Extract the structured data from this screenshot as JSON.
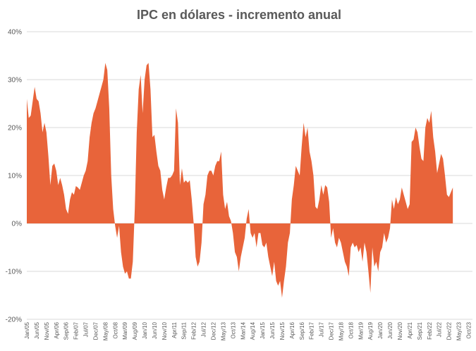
{
  "chart_data": {
    "type": "area",
    "title": "IPC en dólares - incremento anual",
    "xlabel": "",
    "ylabel": "",
    "ylim": [
      -0.2,
      0.4
    ],
    "y_ticks": [
      {
        "value": 0.4,
        "label": "40%"
      },
      {
        "value": 0.3,
        "label": "30%"
      },
      {
        "value": 0.2,
        "label": "20%"
      },
      {
        "value": 0.1,
        "label": "10%"
      },
      {
        "value": 0.0,
        "label": "0%"
      },
      {
        "value": -0.1,
        "label": "-10%"
      },
      {
        "value": -0.2,
        "label": "-20%"
      }
    ],
    "x_range": [
      "Jan/05",
      "Dec/23"
    ],
    "x_ticks": [
      {
        "index": 0,
        "label": "Jan/05"
      },
      {
        "index": 5,
        "label": "Jun/05"
      },
      {
        "index": 10,
        "label": "Nov/05"
      },
      {
        "index": 15,
        "label": "Apr/06"
      },
      {
        "index": 20,
        "label": "Sep/06"
      },
      {
        "index": 25,
        "label": "Feb/07"
      },
      {
        "index": 30,
        "label": "Jul/07"
      },
      {
        "index": 35,
        "label": "Dec/07"
      },
      {
        "index": 40,
        "label": "May/08"
      },
      {
        "index": 45,
        "label": "Oct/08"
      },
      {
        "index": 50,
        "label": "Mar/09"
      },
      {
        "index": 55,
        "label": "Aug/09"
      },
      {
        "index": 60,
        "label": "Jan/10"
      },
      {
        "index": 65,
        "label": "Jun/10"
      },
      {
        "index": 70,
        "label": "Nov/10"
      },
      {
        "index": 75,
        "label": "Apr/11"
      },
      {
        "index": 80,
        "label": "Sep/11"
      },
      {
        "index": 85,
        "label": "Feb/12"
      },
      {
        "index": 90,
        "label": "Jul/12"
      },
      {
        "index": 95,
        "label": "Dec/12"
      },
      {
        "index": 100,
        "label": "May/13"
      },
      {
        "index": 105,
        "label": "Oct/13"
      },
      {
        "index": 110,
        "label": "Mar/14"
      },
      {
        "index": 115,
        "label": "Aug/14"
      },
      {
        "index": 120,
        "label": "Jan/15"
      },
      {
        "index": 125,
        "label": "Jun/15"
      },
      {
        "index": 130,
        "label": "Nov/15"
      },
      {
        "index": 135,
        "label": "Apr/16"
      },
      {
        "index": 140,
        "label": "Sep/16"
      },
      {
        "index": 145,
        "label": "Feb/17"
      },
      {
        "index": 150,
        "label": "Jul/17"
      },
      {
        "index": 155,
        "label": "Dec/17"
      },
      {
        "index": 160,
        "label": "May/18"
      },
      {
        "index": 165,
        "label": "Oct/18"
      },
      {
        "index": 170,
        "label": "Mar/19"
      },
      {
        "index": 175,
        "label": "Aug/19"
      },
      {
        "index": 180,
        "label": "Jan/20"
      },
      {
        "index": 185,
        "label": "Jun/20"
      },
      {
        "index": 190,
        "label": "Nov/20"
      },
      {
        "index": 195,
        "label": "Apr/21"
      },
      {
        "index": 200,
        "label": "Sep/21"
      },
      {
        "index": 205,
        "label": "Feb/22"
      },
      {
        "index": 210,
        "label": "Jul/22"
      },
      {
        "index": 215,
        "label": "Dec/22"
      },
      {
        "index": 220,
        "label": "May/23"
      },
      {
        "index": 225,
        "label": "Oct/23"
      }
    ],
    "series": [
      {
        "name": "IPC en dólares - incremento anual",
        "color": "#e8643a",
        "anchors": [
          [
            0,
            0.26
          ],
          [
            1,
            0.22
          ],
          [
            2,
            0.225
          ],
          [
            4,
            0.285
          ],
          [
            5,
            0.26
          ],
          [
            6,
            0.255
          ],
          [
            7,
            0.23
          ],
          [
            8,
            0.19
          ],
          [
            9,
            0.21
          ],
          [
            10,
            0.19
          ],
          [
            11,
            0.14
          ],
          [
            12,
            0.08
          ],
          [
            13,
            0.12
          ],
          [
            14,
            0.125
          ],
          [
            15,
            0.11
          ],
          [
            16,
            0.08
          ],
          [
            17,
            0.095
          ],
          [
            18,
            0.08
          ],
          [
            19,
            0.06
          ],
          [
            20,
            0.03
          ],
          [
            21,
            0.02
          ],
          [
            22,
            0.05
          ],
          [
            23,
            0.065
          ],
          [
            24,
            0.06
          ],
          [
            25,
            0.078
          ],
          [
            26,
            0.075
          ],
          [
            27,
            0.07
          ],
          [
            28,
            0.085
          ],
          [
            29,
            0.1
          ],
          [
            30,
            0.11
          ],
          [
            31,
            0.13
          ],
          [
            32,
            0.18
          ],
          [
            33,
            0.21
          ],
          [
            34,
            0.23
          ],
          [
            35,
            0.24
          ],
          [
            36,
            0.255
          ],
          [
            37,
            0.27
          ],
          [
            38,
            0.285
          ],
          [
            39,
            0.3
          ],
          [
            40,
            0.335
          ],
          [
            41,
            0.32
          ],
          [
            42,
            0.24
          ],
          [
            43,
            0.1
          ],
          [
            44,
            0.03
          ],
          [
            45,
            -0.005
          ],
          [
            46,
            -0.03
          ],
          [
            47,
            -0.005
          ],
          [
            48,
            -0.06
          ],
          [
            49,
            -0.09
          ],
          [
            50,
            -0.105
          ],
          [
            51,
            -0.1
          ],
          [
            52,
            -0.115
          ],
          [
            53,
            -0.115
          ],
          [
            54,
            -0.08
          ],
          [
            55,
            0.03
          ],
          [
            56,
            0.19
          ],
          [
            57,
            0.28
          ],
          [
            58,
            0.31
          ],
          [
            59,
            0.23
          ],
          [
            60,
            0.3
          ],
          [
            61,
            0.33
          ],
          [
            62,
            0.335
          ],
          [
            63,
            0.28
          ],
          [
            64,
            0.18
          ],
          [
            65,
            0.185
          ],
          [
            66,
            0.15
          ],
          [
            67,
            0.12
          ],
          [
            68,
            0.11
          ],
          [
            69,
            0.07
          ],
          [
            70,
            0.05
          ],
          [
            71,
            0.075
          ],
          [
            72,
            0.095
          ],
          [
            73,
            0.095
          ],
          [
            74,
            0.1
          ],
          [
            75,
            0.11
          ],
          [
            76,
            0.24
          ],
          [
            77,
            0.21
          ],
          [
            78,
            0.08
          ],
          [
            79,
            0.115
          ],
          [
            80,
            0.085
          ],
          [
            81,
            0.09
          ],
          [
            82,
            0.085
          ],
          [
            83,
            0.09
          ],
          [
            84,
            0.05
          ],
          [
            85,
            0.0
          ],
          [
            86,
            -0.07
          ],
          [
            87,
            -0.09
          ],
          [
            88,
            -0.08
          ],
          [
            89,
            -0.04
          ],
          [
            90,
            0.04
          ],
          [
            91,
            0.06
          ],
          [
            92,
            0.1
          ],
          [
            93,
            0.11
          ],
          [
            94,
            0.11
          ],
          [
            95,
            0.1
          ],
          [
            96,
            0.12
          ],
          [
            97,
            0.13
          ],
          [
            98,
            0.13
          ],
          [
            99,
            0.15
          ],
          [
            100,
            0.06
          ],
          [
            101,
            0.03
          ],
          [
            102,
            0.045
          ],
          [
            103,
            0.015
          ],
          [
            104,
            0.005
          ],
          [
            105,
            -0.02
          ],
          [
            106,
            -0.06
          ],
          [
            107,
            -0.07
          ],
          [
            108,
            -0.1
          ],
          [
            109,
            -0.07
          ],
          [
            110,
            -0.05
          ],
          [
            111,
            -0.03
          ],
          [
            112,
            0.01
          ],
          [
            113,
            0.03
          ],
          [
            114,
            -0.02
          ],
          [
            115,
            -0.03
          ],
          [
            116,
            -0.02
          ],
          [
            117,
            -0.05
          ],
          [
            118,
            -0.02
          ],
          [
            119,
            -0.02
          ],
          [
            120,
            -0.045
          ],
          [
            121,
            -0.05
          ],
          [
            122,
            -0.04
          ],
          [
            123,
            -0.07
          ],
          [
            124,
            -0.09
          ],
          [
            125,
            -0.11
          ],
          [
            126,
            -0.08
          ],
          [
            127,
            -0.12
          ],
          [
            128,
            -0.13
          ],
          [
            129,
            -0.12
          ],
          [
            130,
            -0.155
          ],
          [
            131,
            -0.12
          ],
          [
            132,
            -0.09
          ],
          [
            133,
            -0.04
          ],
          [
            134,
            -0.02
          ],
          [
            135,
            0.05
          ],
          [
            136,
            0.08
          ],
          [
            137,
            0.12
          ],
          [
            138,
            0.11
          ],
          [
            139,
            0.1
          ],
          [
            140,
            0.16
          ],
          [
            141,
            0.21
          ],
          [
            142,
            0.18
          ],
          [
            143,
            0.2
          ],
          [
            144,
            0.15
          ],
          [
            145,
            0.13
          ],
          [
            146,
            0.1
          ],
          [
            147,
            0.035
          ],
          [
            148,
            0.03
          ],
          [
            149,
            0.05
          ],
          [
            150,
            0.08
          ],
          [
            151,
            0.06
          ],
          [
            152,
            0.08
          ],
          [
            153,
            0.075
          ],
          [
            154,
            0.045
          ],
          [
            155,
            -0.03
          ],
          [
            156,
            -0.01
          ],
          [
            157,
            -0.04
          ],
          [
            158,
            -0.05
          ],
          [
            159,
            -0.03
          ],
          [
            160,
            -0.04
          ],
          [
            161,
            -0.06
          ],
          [
            162,
            -0.08
          ],
          [
            163,
            -0.09
          ],
          [
            164,
            -0.11
          ],
          [
            165,
            -0.05
          ],
          [
            166,
            -0.04
          ],
          [
            167,
            -0.05
          ],
          [
            168,
            -0.045
          ],
          [
            169,
            -0.06
          ],
          [
            170,
            -0.05
          ],
          [
            171,
            -0.08
          ],
          [
            172,
            -0.04
          ],
          [
            173,
            -0.06
          ],
          [
            174,
            -0.1
          ],
          [
            175,
            -0.145
          ],
          [
            176,
            -0.05
          ],
          [
            177,
            -0.09
          ],
          [
            178,
            -0.08
          ],
          [
            179,
            -0.1
          ],
          [
            180,
            -0.06
          ],
          [
            181,
            -0.05
          ],
          [
            182,
            -0.02
          ],
          [
            183,
            -0.04
          ],
          [
            184,
            -0.03
          ],
          [
            185,
            -0.01
          ],
          [
            186,
            0.05
          ],
          [
            187,
            0.03
          ],
          [
            188,
            0.055
          ],
          [
            189,
            0.04
          ],
          [
            190,
            0.05
          ],
          [
            191,
            0.075
          ],
          [
            192,
            0.06
          ],
          [
            193,
            0.045
          ],
          [
            194,
            0.03
          ],
          [
            195,
            0.04
          ],
          [
            196,
            0.17
          ],
          [
            197,
            0.175
          ],
          [
            198,
            0.2
          ],
          [
            199,
            0.19
          ],
          [
            200,
            0.16
          ],
          [
            201,
            0.135
          ],
          [
            202,
            0.13
          ],
          [
            203,
            0.2
          ],
          [
            204,
            0.22
          ],
          [
            205,
            0.21
          ],
          [
            206,
            0.235
          ],
          [
            207,
            0.18
          ],
          [
            208,
            0.15
          ],
          [
            209,
            0.105
          ],
          [
            210,
            0.125
          ],
          [
            211,
            0.145
          ],
          [
            212,
            0.135
          ],
          [
            213,
            0.1
          ],
          [
            214,
            0.06
          ],
          [
            215,
            0.055
          ],
          [
            216,
            0.065
          ],
          [
            217,
            0.075
          ]
        ]
      }
    ]
  }
}
